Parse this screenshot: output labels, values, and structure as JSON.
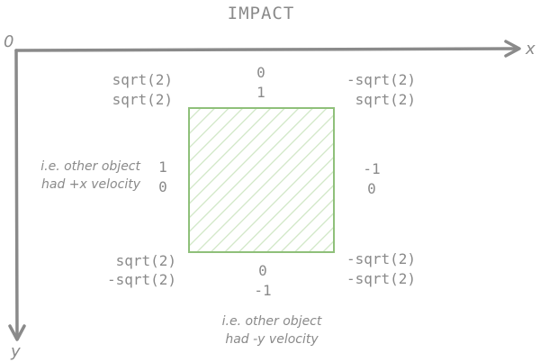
{
  "title": "IMPACT",
  "axes": {
    "origin_label": "0",
    "x_label": "x",
    "y_label": "y",
    "color": "#8a8a8a"
  },
  "box": {
    "stroke": "#8fc07a",
    "hatch": "#cfe6c4"
  },
  "corners": {
    "top_left": [
      "sqrt(2)",
      "sqrt(2)"
    ],
    "top_right": [
      "-sqrt(2)",
      "sqrt(2)"
    ],
    "bottom_left": [
      "sqrt(2)",
      "-sqrt(2)"
    ],
    "bottom_right": [
      "-sqrt(2)",
      "-sqrt(2)"
    ]
  },
  "edges": {
    "top": [
      "0",
      "1"
    ],
    "left": [
      "1",
      "0"
    ],
    "right": [
      "-1",
      "0"
    ],
    "bottom": [
      "0",
      "-1"
    ]
  },
  "notes": {
    "left": [
      "i.e. other object",
      "had +x velocity"
    ],
    "bottom": [
      "i.e. other object",
      "had -y velocity"
    ]
  }
}
